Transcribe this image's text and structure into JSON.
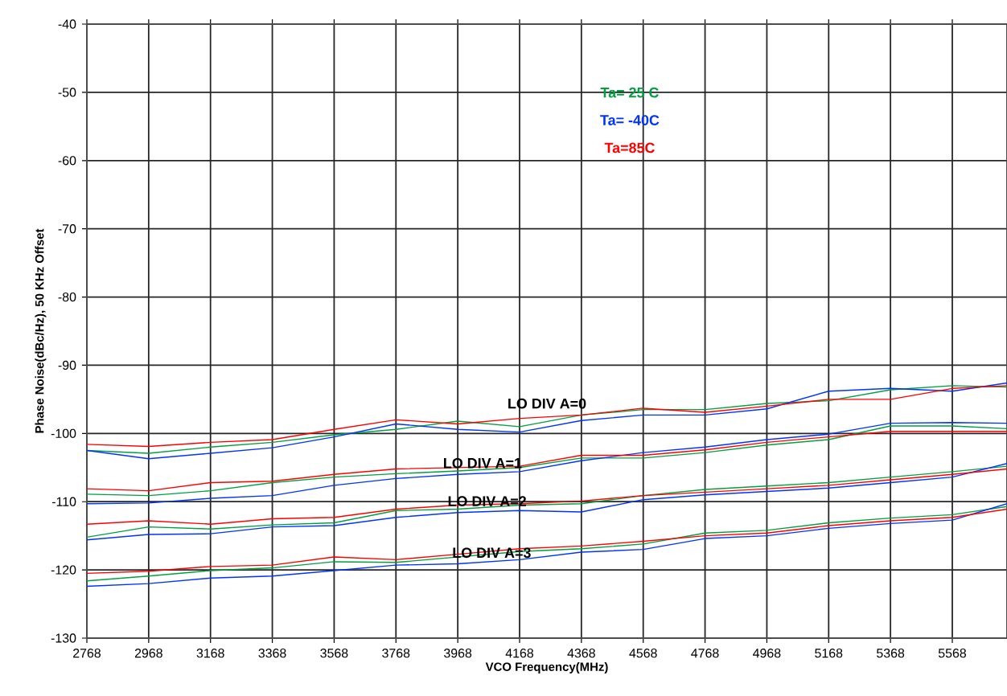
{
  "chart_data": {
    "type": "line",
    "xlabel": "VCO Frequency(MHz)",
    "ylabel": "Phase Noise(dBc/Hz), 50 KHz Offset",
    "x": [
      2768,
      2968,
      3168,
      3368,
      3568,
      3768,
      3968,
      4168,
      4368,
      4568,
      4768,
      4968,
      5168,
      5368,
      5568,
      5745
    ],
    "xlim": [
      2768,
      5745
    ],
    "xticks": [
      2768,
      2968,
      3168,
      3368,
      3568,
      3768,
      3968,
      4168,
      4368,
      4568,
      4768,
      4968,
      5168,
      5368,
      5568
    ],
    "ylim": [
      -130,
      -40
    ],
    "yticks": [
      -130,
      -120,
      -110,
      -100,
      -90,
      -80,
      -70,
      -60,
      -50,
      -40
    ],
    "grid": true,
    "legend": "top",
    "marker": "none",
    "line_style": "solid",
    "series": [
      {
        "name": "Ta= 25 C",
        "color": "#00a040",
        "values": [
          -102.5,
          -102.9,
          -102,
          -101.3,
          -100.2,
          -99.4,
          -98.2,
          -99,
          -97.3,
          -96.5,
          -96.5,
          -95.6,
          -95.2,
          -93.6,
          -93.0,
          -93.2
        ]
      },
      {
        "name": "Ta= -40C",
        "color": "#0033ff",
        "values": [
          -102.5,
          -103.7,
          -102.9,
          -102.1,
          -100.5,
          -98.6,
          -99.4,
          -99.8,
          -98.1,
          -97.3,
          -97.3,
          -96.4,
          -93.8,
          -93.4,
          -93.8,
          -92.6
        ]
      },
      {
        "name": "Ta=85C",
        "color": "#ff0000",
        "values": [
          -101.6,
          -101.9,
          -101.3,
          -100.9,
          -99.4,
          -98,
          -98.6,
          -97.8,
          -97.3,
          -96.3,
          -96.9,
          -96,
          -95,
          -95,
          -93.4,
          -93
        ]
      },
      {
        "color": "#00a040",
        "values": [
          -108.9,
          -109.1,
          -108.4,
          -107.2,
          -106.4,
          -105.9,
          -105.5,
          -105,
          -103.6,
          -103.6,
          -102.8,
          -101.7,
          -100.9,
          -98.9,
          -98.9,
          -99.3
        ]
      },
      {
        "color": "#0033ff",
        "values": [
          -110.3,
          -110.2,
          -109.5,
          -109.1,
          -107.6,
          -106.6,
          -106,
          -105.6,
          -104,
          -102.8,
          -102.0,
          -100.9,
          -100.1,
          -98.5,
          -98.4,
          -98.5
        ]
      },
      {
        "color": "#ff0000",
        "values": [
          -108.1,
          -108.4,
          -107.2,
          -107,
          -106,
          -105.2,
          -105,
          -104.8,
          -103.2,
          -103.2,
          -102.4,
          -101.3,
          -100.5,
          -99.7,
          -99.7,
          -99.7
        ]
      },
      {
        "color": "#00a040",
        "values": [
          -115.2,
          -113.7,
          -114,
          -113.4,
          -113.1,
          -111.3,
          -111.1,
          -110.5,
          -110.3,
          -109.1,
          -108.2,
          -107.7,
          -107.2,
          -106.4,
          -105.6,
          -104.8
        ]
      },
      {
        "color": "#0033ff",
        "values": [
          -115.6,
          -114.8,
          -114.7,
          -113.7,
          -113.5,
          -112.3,
          -111.6,
          -111.3,
          -111.5,
          -109.7,
          -109.0,
          -108.5,
          -108.0,
          -107.2,
          -106.4,
          -104.4
        ]
      },
      {
        "color": "#ff0000",
        "values": [
          -113.3,
          -112.8,
          -113.3,
          -112.5,
          -112.3,
          -111.1,
          -110.5,
          -110.3,
          -109.9,
          -109.1,
          -108.6,
          -108.1,
          -107.6,
          -106.8,
          -106,
          -105.2
        ]
      },
      {
        "color": "#00a040",
        "values": [
          -121.6,
          -120.9,
          -120.1,
          -119.7,
          -118.8,
          -118.9,
          -118.1,
          -117.3,
          -116.9,
          -116.2,
          -114.6,
          -114.2,
          -113.1,
          -112.4,
          -111.9,
          -110.7
        ]
      },
      {
        "color": "#0033ff",
        "values": [
          -122.4,
          -122,
          -121.2,
          -120.9,
          -120.1,
          -119.3,
          -119.1,
          -118.5,
          -117.4,
          -117,
          -115.4,
          -115.0,
          -113.9,
          -113.2,
          -112.7,
          -110.3
        ]
      },
      {
        "color": "#ff0000",
        "values": [
          -120.5,
          -120.2,
          -119.5,
          -119.3,
          -118.1,
          -118.5,
          -117.7,
          -116.9,
          -116.5,
          -115.8,
          -115,
          -114.6,
          -113.5,
          -112.8,
          -112.3,
          -111.1
        ]
      }
    ],
    "annotations": [
      "LO DIV A=0",
      "LO DIV A=1",
      "LO DIV A=2",
      "LO DIV A=3"
    ]
  }
}
